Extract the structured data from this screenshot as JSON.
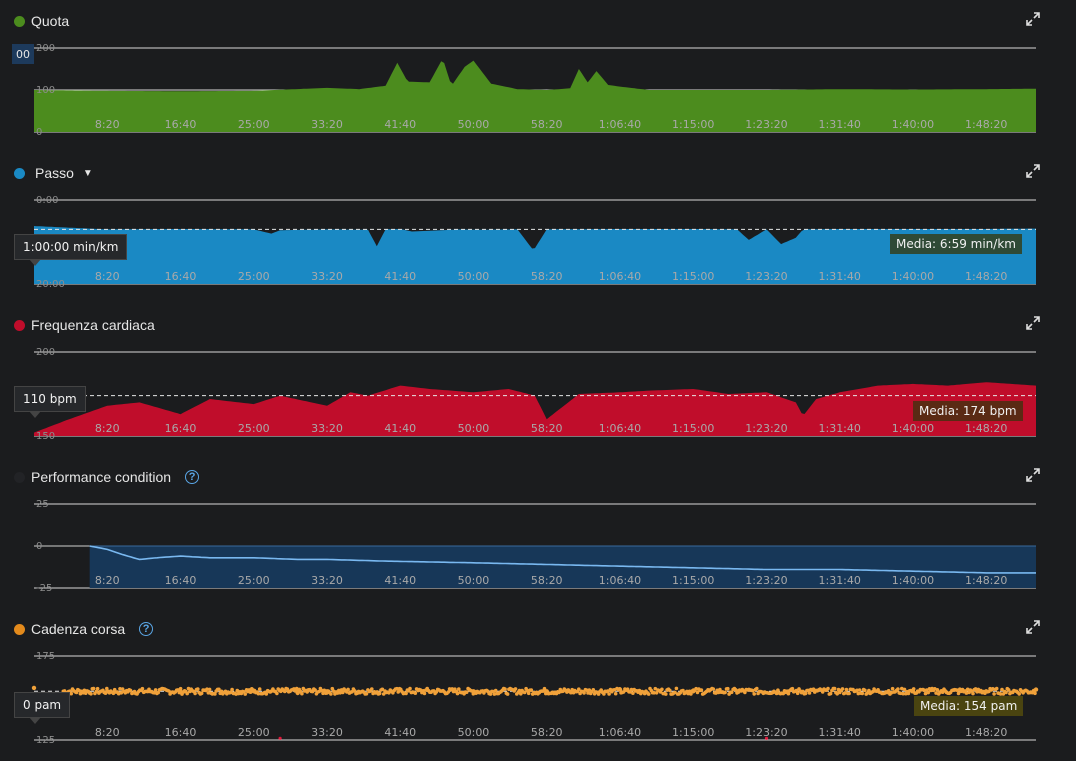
{
  "x_ticks": [
    "8:20",
    "16:40",
    "25:00",
    "33:20",
    "41:40",
    "50:00",
    "58:20",
    "1:06:40",
    "1:15:00",
    "1:23:20",
    "1:31:40",
    "1:40:00",
    "1:48:20"
  ],
  "panels": {
    "quota": {
      "title": "Quota",
      "color": "#4c8c1e",
      "y_ticks": [
        "200",
        "100",
        "0"
      ],
      "badge": "00"
    },
    "passo": {
      "title": "Passo",
      "color": "#1a89c4",
      "y_ticks": [
        "0:00",
        "20:00"
      ],
      "hover": "1:00:00 min/km",
      "average": "Media: 6:59 min/km"
    },
    "cardio": {
      "title": "Frequenza cardiaca",
      "color": "#c00d2b",
      "y_ticks": [
        "200",
        "150"
      ],
      "y_tick_mid": "175",
      "hover": "110 bpm",
      "average": "Media: 174 bpm"
    },
    "perf": {
      "title": "Performance condition",
      "color": "#222326",
      "y_ticks": [
        "25",
        "0",
        "-25"
      ]
    },
    "cadenza": {
      "title": "Cadenza corsa",
      "color": "#e38a1c",
      "y_ticks": [
        "175",
        "150",
        "125"
      ],
      "hover": "0 pam",
      "average": "Media: 154 pam"
    }
  },
  "chart_data": [
    {
      "type": "area",
      "title": "Quota",
      "x": [
        "0:00",
        "8:20",
        "16:40",
        "25:00",
        "33:20",
        "37:00",
        "40:00",
        "41:20",
        "42:30",
        "45:00",
        "46:30",
        "47:30",
        "49:00",
        "50:00",
        "52:00",
        "55:00",
        "58:20",
        "1:01:00",
        "1:02:00",
        "1:03:00",
        "1:04:00",
        "1:05:20",
        "1:06:40",
        "1:10:00",
        "1:15:00",
        "1:23:20",
        "1:31:40",
        "1:40:00",
        "1:48:20",
        "1:54:00"
      ],
      "values": [
        100,
        98,
        97,
        98,
        105,
        102,
        110,
        165,
        120,
        118,
        175,
        110,
        155,
        170,
        115,
        102,
        100,
        104,
        150,
        118,
        145,
        112,
        108,
        100,
        100,
        100,
        102,
        101,
        102,
        103
      ],
      "ylim": [
        0,
        200
      ],
      "grid": true
    },
    {
      "type": "area",
      "title": "Passo",
      "x": [
        "0:00",
        "8:20",
        "16:40",
        "25:00",
        "27:00",
        "28:00",
        "33:20",
        "38:00",
        "39:00",
        "40:00",
        "41:40",
        "43:00",
        "48:30",
        "50:00",
        "55:00",
        "56:50",
        "58:20",
        "1:06:40",
        "1:15:00",
        "1:20:00",
        "1:21:20",
        "1:23:20",
        "1:25:00",
        "1:26:40",
        "1:27:30",
        "1:31:40",
        "1:40:00",
        "1:48:20",
        "1:54:00"
      ],
      "values": [
        6.2,
        7.0,
        6.9,
        7.0,
        8.0,
        7.2,
        7.0,
        7.1,
        11.0,
        7.0,
        6.9,
        7.5,
        7.0,
        7.1,
        7.0,
        12.0,
        7.0,
        6.9,
        6.9,
        7.0,
        9.5,
        7.0,
        10.5,
        9.0,
        7.0,
        6.9,
        6.9,
        6.9,
        6.8
      ],
      "ylim": [
        0,
        20
      ],
      "reversed": true,
      "average": 6.98,
      "grid": true
    },
    {
      "type": "area",
      "title": "Frequenza cardiaca",
      "x": [
        "0:00",
        "4:00",
        "8:20",
        "12:00",
        "16:40",
        "20:00",
        "25:00",
        "28:00",
        "33:20",
        "36:00",
        "38:00",
        "41:40",
        "45:00",
        "50:00",
        "54:00",
        "57:00",
        "58:20",
        "1:02:00",
        "1:06:40",
        "1:10:00",
        "1:15:00",
        "1:19:00",
        "1:23:20",
        "1:26:40",
        "1:27:30",
        "1:29:00",
        "1:31:40",
        "1:36:00",
        "1:40:00",
        "1:44:00",
        "1:48:20",
        "1:54:00"
      ],
      "values": [
        152,
        160,
        168,
        170,
        163,
        172,
        169,
        174,
        168,
        176,
        174,
        180,
        178,
        176,
        178,
        174,
        160,
        175,
        176,
        177,
        178,
        175,
        176,
        170,
        162,
        172,
        176,
        180,
        181,
        180,
        182,
        180
      ],
      "ylim": [
        150,
        200
      ],
      "average": 174,
      "grid": true
    },
    {
      "type": "line",
      "title": "Performance condition",
      "x": [
        "0:00",
        "6:20",
        "8:20",
        "10:00",
        "12:00",
        "14:00",
        "16:40",
        "20:00",
        "25:00",
        "30:00",
        "33:20",
        "40:00",
        "50:00",
        "58:20",
        "1:06:40",
        "1:15:00",
        "1:23:20",
        "1:31:40",
        "1:40:00",
        "1:48:20",
        "1:54:00"
      ],
      "values": [
        0,
        0,
        -2,
        -5,
        -8,
        -7,
        -6,
        -7,
        -7,
        -8,
        -8,
        -9,
        -10,
        -11,
        -12,
        -13,
        -14,
        -14,
        -15,
        -16,
        -16
      ],
      "ylim": [
        -25,
        25
      ],
      "grid": true
    },
    {
      "type": "scatter",
      "title": "Cadenza corsa",
      "x": [
        "0:00",
        "8:20",
        "16:40",
        "25:00",
        "28:00",
        "30:00",
        "33:20",
        "41:40",
        "50:00",
        "58:20",
        "1:06:40",
        "1:15:00",
        "1:20:00",
        "1:23:20",
        "1:31:40",
        "1:40:00",
        "1:48:20",
        "1:54:00"
      ],
      "values": [
        156,
        154,
        154,
        154,
        126,
        153,
        154,
        155,
        154,
        154,
        155,
        154,
        154,
        126,
        154,
        154,
        154,
        155
      ],
      "ylim": [
        125,
        175
      ],
      "average": 154,
      "grid": true
    }
  ]
}
